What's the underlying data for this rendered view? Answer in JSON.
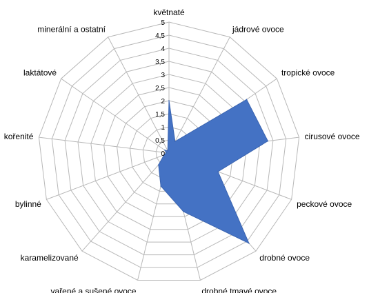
{
  "chart_data": {
    "type": "radar",
    "categories": [
      "květnaté",
      "jádrové ovoce",
      "tropické ovoce",
      "cirusové ovoce",
      "peckové ovoce",
      "drobné ovoce",
      "drobné tmavé ovoce",
      "vařené a sušené ovoce",
      "karamelizované",
      "bylinné",
      "kořenité",
      "laktátové",
      "minerální a ostatní"
    ],
    "series": [
      {
        "values": [
          2,
          0.5,
          3.6,
          3.8,
          2,
          4.6,
          2.3,
          1.3,
          0.6,
          0.2,
          0.1,
          0.2,
          0.1
        ],
        "color": "#4472c4"
      }
    ],
    "rlim": [
      0,
      5
    ],
    "ticks": [
      "0",
      "0,5",
      "1",
      "1,5",
      "2",
      "2,5",
      "3",
      "3,5",
      "4",
      "4,5",
      "5"
    ],
    "grid": true,
    "legend": "none"
  }
}
